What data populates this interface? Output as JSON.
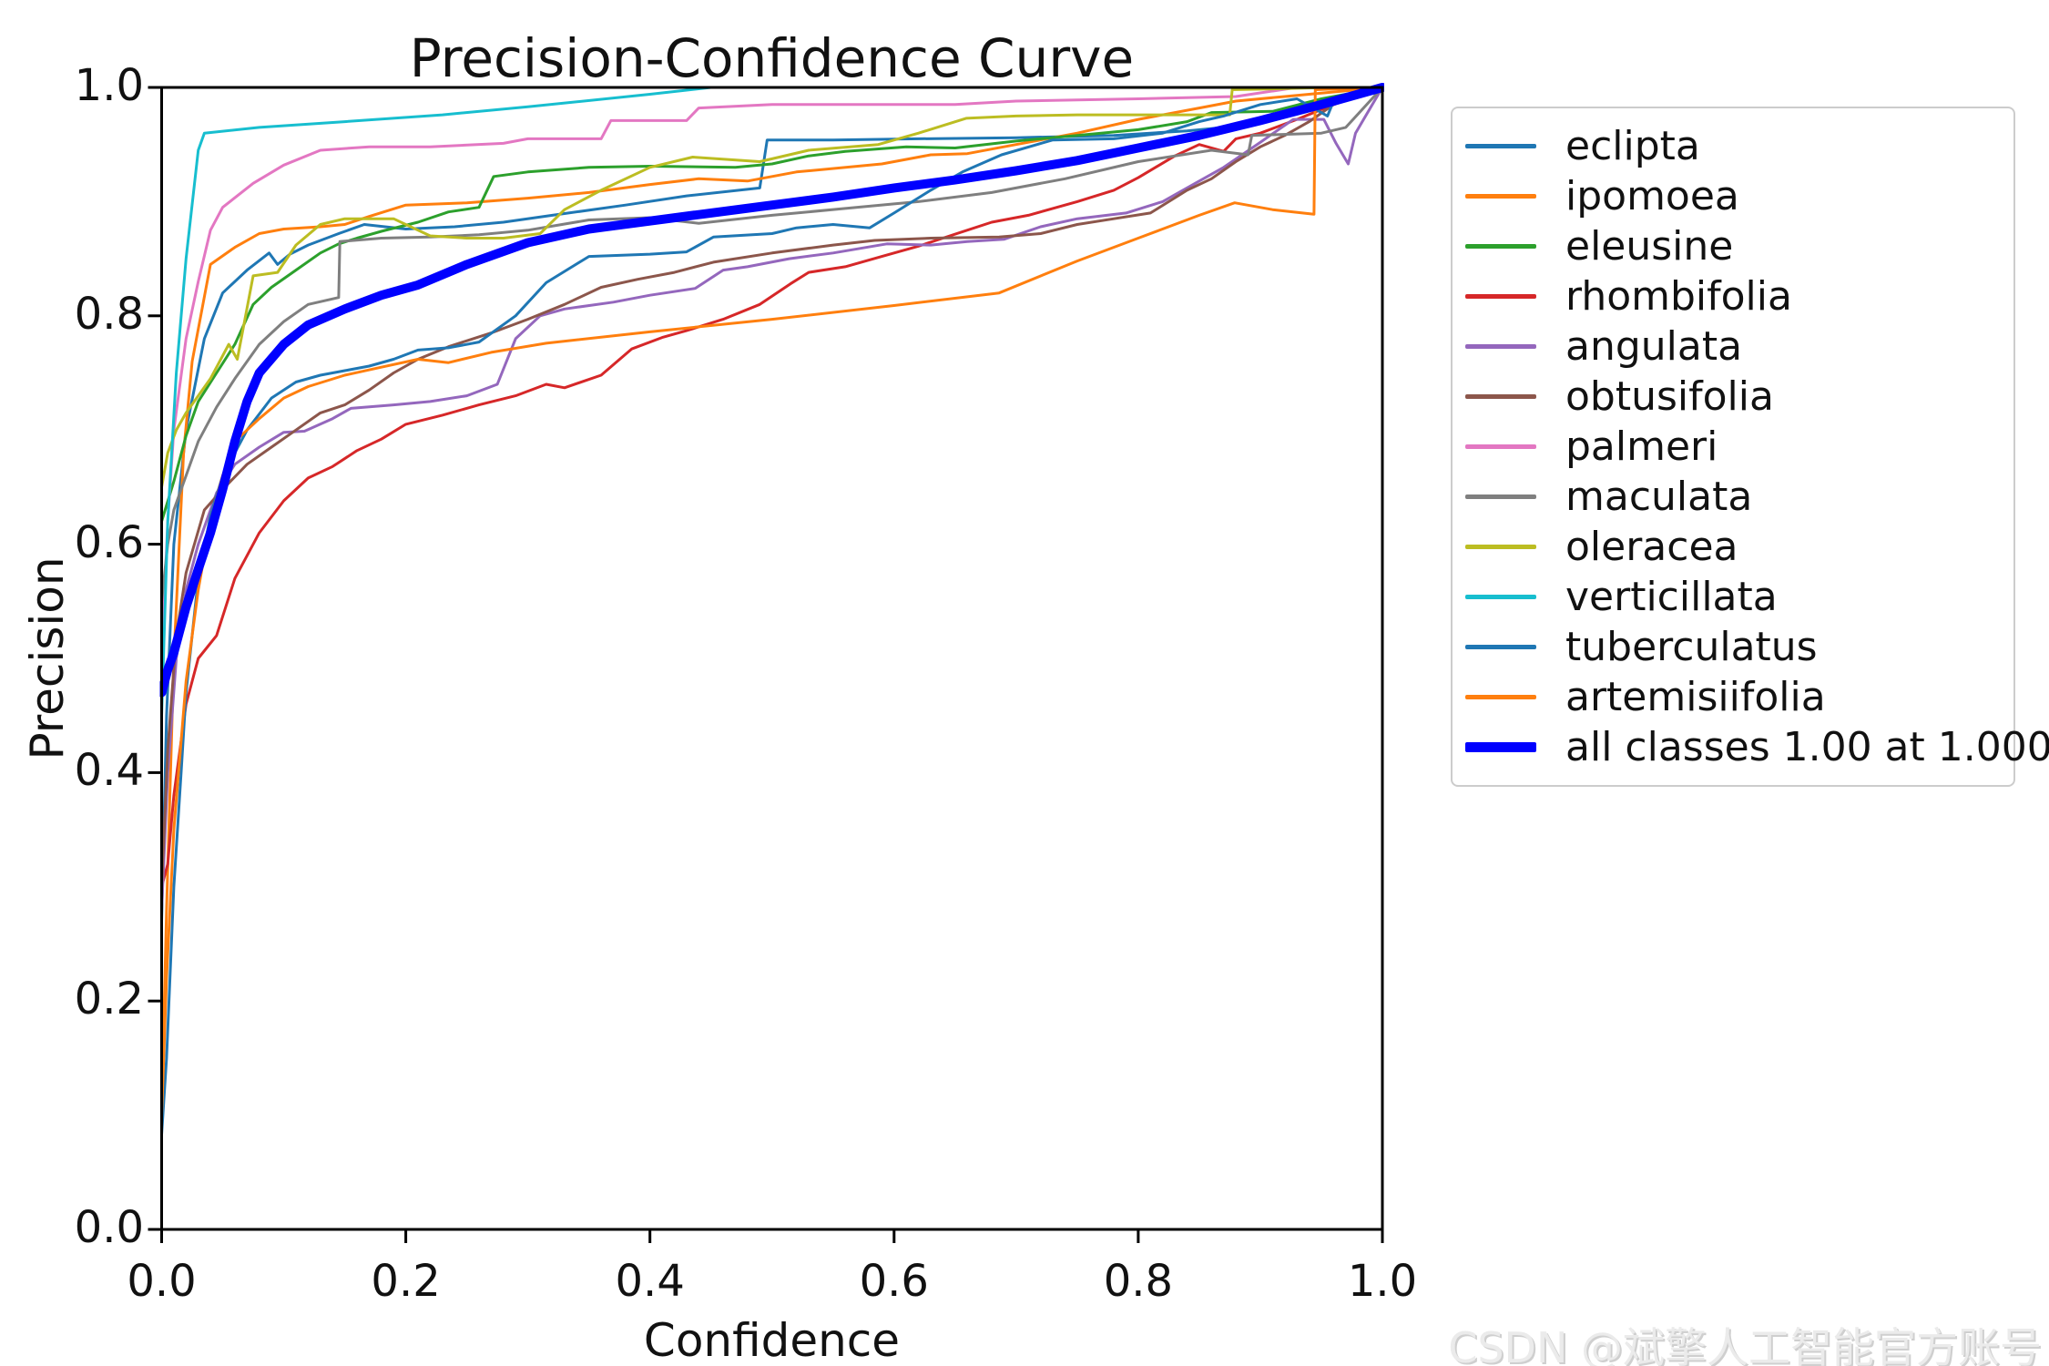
{
  "chart_data": {
    "type": "line",
    "title": "Precision-Confidence Curve",
    "xlabel": "Confidence",
    "ylabel": "Precision",
    "xlim": [
      0,
      1
    ],
    "ylim": [
      0,
      1
    ],
    "xticks": [
      0,
      0.2,
      0.4,
      0.6,
      0.8,
      1.0
    ],
    "yticks": [
      0,
      0.2,
      0.4,
      0.6,
      0.8,
      1.0
    ],
    "xtick_labels": [
      "0.0",
      "0.2",
      "0.4",
      "0.6",
      "0.8",
      "1.0"
    ],
    "ytick_labels": [
      "0.0",
      "0.2",
      "0.4",
      "0.6",
      "0.8",
      "1.0"
    ],
    "grid": false,
    "legend_position": "outside-upper-right",
    "series": [
      {
        "name": "eclipta",
        "color": "#1f77b4",
        "line_width": 3,
        "x": [
          0,
          0.004,
          0.01,
          0.02,
          0.035,
          0.05,
          0.07,
          0.088,
          0.095,
          0.105,
          0.12,
          0.145,
          0.166,
          0.2,
          0.24,
          0.28,
          0.32,
          0.38,
          0.43,
          0.49,
          0.496,
          0.55,
          0.62,
          0.7,
          0.78,
          0.84,
          0.88,
          0.91,
          0.94,
          0.97,
          1.0
        ],
        "y": [
          0.27,
          0.45,
          0.6,
          0.7,
          0.78,
          0.82,
          0.84,
          0.855,
          0.845,
          0.854,
          0.862,
          0.872,
          0.88,
          0.876,
          0.878,
          0.882,
          0.888,
          0.897,
          0.905,
          0.912,
          0.954,
          0.954,
          0.955,
          0.956,
          0.958,
          0.962,
          0.966,
          0.975,
          0.985,
          0.993,
          1.0
        ]
      },
      {
        "name": "ipomoea",
        "color": "#ff7f0e",
        "line_width": 3,
        "x": [
          0,
          0.004,
          0.01,
          0.018,
          0.025,
          0.04,
          0.06,
          0.08,
          0.1,
          0.13,
          0.15,
          0.17,
          0.2,
          0.25,
          0.3,
          0.35,
          0.4,
          0.44,
          0.48,
          0.52,
          0.59,
          0.63,
          0.66,
          0.7,
          0.75,
          0.8,
          0.85,
          0.88,
          0.92,
          0.96,
          1.0
        ],
        "y": [
          0.1,
          0.28,
          0.5,
          0.68,
          0.76,
          0.845,
          0.86,
          0.872,
          0.876,
          0.878,
          0.88,
          0.887,
          0.897,
          0.899,
          0.903,
          0.908,
          0.915,
          0.92,
          0.918,
          0.926,
          0.933,
          0.941,
          0.942,
          0.95,
          0.96,
          0.972,
          0.982,
          0.988,
          0.992,
          0.996,
          1.0
        ]
      },
      {
        "name": "eleusine",
        "color": "#2ca02c",
        "line_width": 3,
        "x": [
          0,
          0.01,
          0.02,
          0.03,
          0.045,
          0.06,
          0.075,
          0.09,
          0.11,
          0.13,
          0.145,
          0.16,
          0.18,
          0.21,
          0.235,
          0.26,
          0.272,
          0.3,
          0.35,
          0.4,
          0.47,
          0.5,
          0.53,
          0.56,
          0.61,
          0.65,
          0.7,
          0.75,
          0.8,
          0.84,
          0.86,
          0.91,
          0.95,
          1.0
        ],
        "y": [
          0.62,
          0.655,
          0.695,
          0.725,
          0.75,
          0.775,
          0.81,
          0.825,
          0.84,
          0.855,
          0.863,
          0.868,
          0.874,
          0.882,
          0.891,
          0.895,
          0.922,
          0.926,
          0.93,
          0.931,
          0.93,
          0.933,
          0.94,
          0.944,
          0.948,
          0.947,
          0.953,
          0.958,
          0.963,
          0.97,
          0.978,
          0.979,
          0.99,
          1.0
        ]
      },
      {
        "name": "rhombifolia",
        "color": "#d62728",
        "line_width": 3,
        "x": [
          0,
          0.005,
          0.01,
          0.02,
          0.03,
          0.045,
          0.06,
          0.08,
          0.1,
          0.12,
          0.14,
          0.16,
          0.18,
          0.2,
          0.23,
          0.26,
          0.29,
          0.315,
          0.33,
          0.36,
          0.385,
          0.41,
          0.43,
          0.46,
          0.49,
          0.515,
          0.53,
          0.56,
          0.59,
          0.62,
          0.64,
          0.68,
          0.71,
          0.75,
          0.78,
          0.8,
          0.83,
          0.85,
          0.87,
          0.88,
          0.9,
          0.93,
          0.96,
          1.0
        ],
        "y": [
          0.3,
          0.32,
          0.38,
          0.46,
          0.5,
          0.52,
          0.57,
          0.61,
          0.638,
          0.658,
          0.668,
          0.682,
          0.692,
          0.705,
          0.713,
          0.722,
          0.73,
          0.74,
          0.737,
          0.748,
          0.771,
          0.781,
          0.787,
          0.797,
          0.81,
          0.828,
          0.838,
          0.843,
          0.852,
          0.861,
          0.868,
          0.882,
          0.888,
          0.9,
          0.91,
          0.921,
          0.94,
          0.95,
          0.944,
          0.955,
          0.96,
          0.972,
          0.985,
          1.0
        ]
      },
      {
        "name": "angulata",
        "color": "#9467bd",
        "line_width": 3,
        "x": [
          0,
          0.005,
          0.012,
          0.02,
          0.03,
          0.045,
          0.06,
          0.08,
          0.1,
          0.117,
          0.14,
          0.155,
          0.19,
          0.22,
          0.25,
          0.275,
          0.29,
          0.31,
          0.33,
          0.37,
          0.4,
          0.437,
          0.46,
          0.48,
          0.514,
          0.55,
          0.594,
          0.63,
          0.66,
          0.69,
          0.72,
          0.75,
          0.79,
          0.82,
          0.85,
          0.87,
          0.9,
          0.927,
          0.952,
          0.962,
          0.972,
          0.978,
          1.0
        ],
        "y": [
          0.28,
          0.4,
          0.5,
          0.56,
          0.6,
          0.645,
          0.67,
          0.685,
          0.698,
          0.699,
          0.71,
          0.719,
          0.722,
          0.725,
          0.73,
          0.74,
          0.78,
          0.8,
          0.806,
          0.812,
          0.818,
          0.824,
          0.84,
          0.843,
          0.85,
          0.855,
          0.863,
          0.862,
          0.865,
          0.867,
          0.878,
          0.885,
          0.89,
          0.9,
          0.918,
          0.93,
          0.952,
          0.972,
          0.972,
          0.951,
          0.933,
          0.96,
          1.0
        ]
      },
      {
        "name": "obtusifolia",
        "color": "#8c564b",
        "line_width": 3,
        "x": [
          0,
          0.005,
          0.012,
          0.02,
          0.035,
          0.05,
          0.07,
          0.09,
          0.11,
          0.13,
          0.15,
          0.17,
          0.19,
          0.21,
          0.235,
          0.27,
          0.3,
          0.33,
          0.36,
          0.39,
          0.42,
          0.452,
          0.5,
          0.55,
          0.584,
          0.63,
          0.686,
          0.72,
          0.75,
          0.78,
          0.81,
          0.84,
          0.86,
          0.88,
          0.9,
          0.92,
          0.94,
          0.96,
          1.0
        ],
        "y": [
          0.3,
          0.42,
          0.52,
          0.575,
          0.63,
          0.648,
          0.67,
          0.685,
          0.7,
          0.715,
          0.722,
          0.735,
          0.75,
          0.762,
          0.773,
          0.785,
          0.797,
          0.81,
          0.825,
          0.832,
          0.838,
          0.847,
          0.855,
          0.862,
          0.866,
          0.868,
          0.869,
          0.872,
          0.88,
          0.885,
          0.89,
          0.91,
          0.92,
          0.935,
          0.948,
          0.958,
          0.97,
          0.985,
          1.0
        ]
      },
      {
        "name": "palmeri",
        "color": "#e377c2",
        "line_width": 3,
        "x": [
          0,
          0.005,
          0.01,
          0.02,
          0.03,
          0.04,
          0.05,
          0.075,
          0.1,
          0.13,
          0.17,
          0.22,
          0.28,
          0.3,
          0.36,
          0.368,
          0.43,
          0.44,
          0.5,
          0.65,
          0.7,
          0.8,
          0.88,
          0.93,
          1.0
        ],
        "y": [
          0.5,
          0.62,
          0.7,
          0.78,
          0.83,
          0.875,
          0.895,
          0.916,
          0.932,
          0.945,
          0.948,
          0.948,
          0.951,
          0.955,
          0.955,
          0.971,
          0.971,
          0.982,
          0.985,
          0.985,
          0.988,
          0.99,
          0.992,
          1.0,
          1.0
        ]
      },
      {
        "name": "maculata",
        "color": "#7f7f7f",
        "line_width": 3,
        "x": [
          0,
          0.005,
          0.01,
          0.02,
          0.03,
          0.045,
          0.06,
          0.08,
          0.1,
          0.12,
          0.145,
          0.146,
          0.18,
          0.22,
          0.26,
          0.3,
          0.35,
          0.4,
          0.44,
          0.5,
          0.56,
          0.62,
          0.68,
          0.74,
          0.8,
          0.86,
          0.89,
          0.893,
          0.95,
          0.97,
          1.0
        ],
        "y": [
          0.55,
          0.6,
          0.63,
          0.66,
          0.69,
          0.72,
          0.745,
          0.775,
          0.795,
          0.81,
          0.816,
          0.865,
          0.868,
          0.869,
          0.871,
          0.875,
          0.884,
          0.886,
          0.881,
          0.888,
          0.894,
          0.9,
          0.908,
          0.92,
          0.935,
          0.945,
          0.941,
          0.958,
          0.96,
          0.965,
          1.0
        ]
      },
      {
        "name": "oleracea",
        "color": "#bcbd22",
        "line_width": 3,
        "x": [
          0,
          0.005,
          0.012,
          0.02,
          0.03,
          0.04,
          0.055,
          0.062,
          0.075,
          0.095,
          0.11,
          0.13,
          0.15,
          0.19,
          0.22,
          0.25,
          0.28,
          0.31,
          0.33,
          0.36,
          0.4,
          0.435,
          0.49,
          0.53,
          0.587,
          0.62,
          0.659,
          0.7,
          0.75,
          0.8,
          0.84,
          0.875,
          0.877,
          0.92,
          0.96,
          1.0
        ],
        "y": [
          0.65,
          0.68,
          0.7,
          0.715,
          0.73,
          0.745,
          0.775,
          0.762,
          0.835,
          0.838,
          0.862,
          0.88,
          0.885,
          0.885,
          0.87,
          0.868,
          0.868,
          0.872,
          0.893,
          0.91,
          0.93,
          0.939,
          0.935,
          0.945,
          0.95,
          0.96,
          0.973,
          0.975,
          0.976,
          0.976,
          0.976,
          0.976,
          0.998,
          0.999,
          1.0,
          1.0
        ]
      },
      {
        "name": "verticillata",
        "color": "#17becf",
        "line_width": 3,
        "x": [
          0,
          0.005,
          0.012,
          0.02,
          0.03,
          0.035,
          0.08,
          0.15,
          0.23,
          0.3,
          0.4,
          0.45,
          0.6,
          0.8,
          1.0
        ],
        "y": [
          0.45,
          0.62,
          0.75,
          0.85,
          0.945,
          0.96,
          0.965,
          0.97,
          0.976,
          0.983,
          0.994,
          1.0,
          1.0,
          1.0,
          1.0
        ]
      },
      {
        "name": "tuberculatus",
        "color": "#1f77b4",
        "line_width": 3,
        "x": [
          0,
          0.004,
          0.01,
          0.016,
          0.02,
          0.025,
          0.03,
          0.04,
          0.05,
          0.07,
          0.09,
          0.11,
          0.13,
          0.15,
          0.17,
          0.19,
          0.21,
          0.235,
          0.26,
          0.29,
          0.315,
          0.35,
          0.4,
          0.43,
          0.452,
          0.5,
          0.52,
          0.55,
          0.58,
          0.6,
          0.63,
          0.656,
          0.688,
          0.73,
          0.78,
          0.82,
          0.85,
          0.87,
          0.9,
          0.93,
          0.955,
          0.96,
          0.975,
          1.0
        ],
        "y": [
          0.083,
          0.15,
          0.3,
          0.4,
          0.47,
          0.52,
          0.57,
          0.625,
          0.66,
          0.7,
          0.728,
          0.742,
          0.748,
          0.752,
          0.756,
          0.762,
          0.77,
          0.772,
          0.777,
          0.8,
          0.829,
          0.852,
          0.854,
          0.856,
          0.869,
          0.872,
          0.877,
          0.88,
          0.877,
          0.89,
          0.91,
          0.926,
          0.941,
          0.954,
          0.955,
          0.96,
          0.97,
          0.975,
          0.985,
          0.99,
          0.975,
          0.988,
          0.99,
          1.0
        ]
      },
      {
        "name": "artemisiifolia",
        "color": "#ff7f0e",
        "line_width": 3,
        "x": [
          0,
          0.004,
          0.01,
          0.02,
          0.03,
          0.04,
          0.05,
          0.06,
          0.08,
          0.1,
          0.12,
          0.15,
          0.18,
          0.21,
          0.235,
          0.27,
          0.315,
          0.4,
          0.5,
          0.6,
          0.686,
          0.75,
          0.8,
          0.85,
          0.879,
          0.91,
          0.944,
          0.945,
          0.97,
          1.0
        ],
        "y": [
          0.1,
          0.22,
          0.35,
          0.48,
          0.56,
          0.62,
          0.66,
          0.69,
          0.71,
          0.728,
          0.738,
          0.748,
          0.755,
          0.762,
          0.759,
          0.768,
          0.776,
          0.786,
          0.797,
          0.809,
          0.82,
          0.848,
          0.868,
          0.888,
          0.899,
          0.893,
          0.889,
          0.998,
          0.999,
          1.0
        ]
      },
      {
        "name": "all classes 1.00 at 1.000",
        "color": "#0000ff",
        "line_width": 10,
        "x": [
          0,
          0.005,
          0.01,
          0.02,
          0.03,
          0.04,
          0.05,
          0.06,
          0.07,
          0.08,
          0.1,
          0.12,
          0.15,
          0.18,
          0.21,
          0.25,
          0.3,
          0.35,
          0.4,
          0.45,
          0.5,
          0.55,
          0.6,
          0.65,
          0.7,
          0.75,
          0.8,
          0.85,
          0.9,
          0.95,
          1.0
        ],
        "y": [
          0.47,
          0.49,
          0.505,
          0.545,
          0.578,
          0.61,
          0.648,
          0.69,
          0.725,
          0.75,
          0.775,
          0.792,
          0.806,
          0.818,
          0.827,
          0.845,
          0.864,
          0.876,
          0.883,
          0.89,
          0.897,
          0.904,
          0.912,
          0.919,
          0.927,
          0.936,
          0.947,
          0.958,
          0.971,
          0.985,
          1.0
        ]
      }
    ]
  },
  "watermark": {
    "text": "CSDN @斌擎人工智能官方账号",
    "color": "#ebebeb"
  }
}
